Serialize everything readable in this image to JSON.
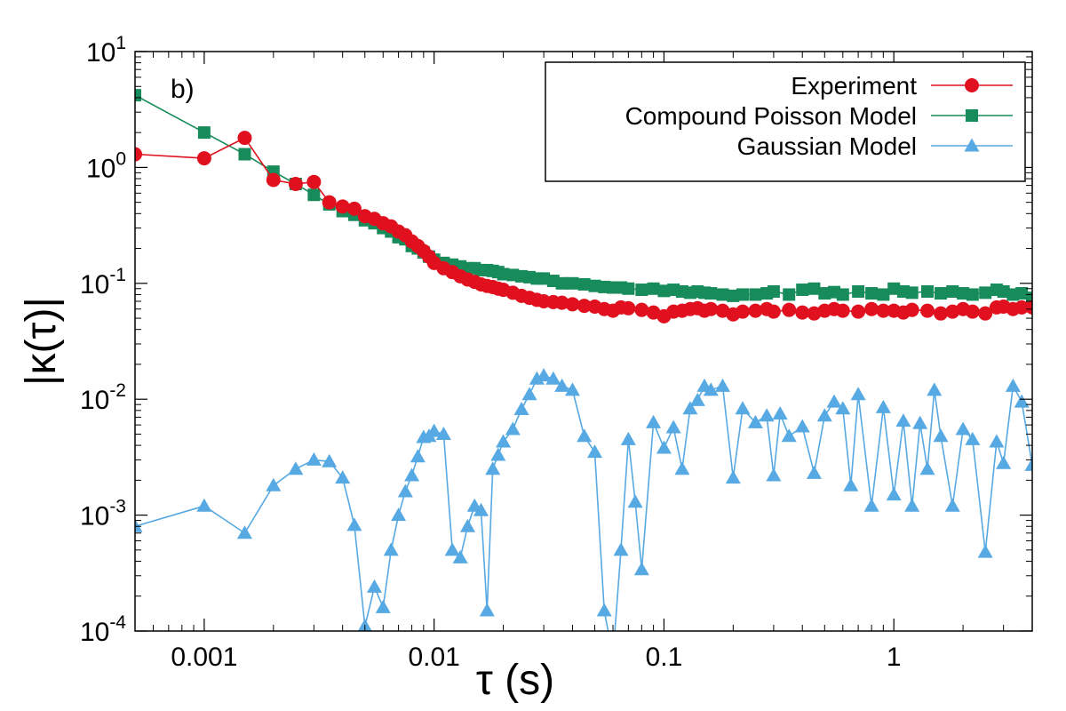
{
  "chart_data": {
    "type": "line",
    "title": "",
    "panel_label": "b)",
    "xlabel": "τ (s)",
    "ylabel": "|κ(τ)|",
    "xscale": "log",
    "yscale": "log",
    "xlim": [
      0.0005,
      4.0
    ],
    "ylim": [
      0.0001,
      10
    ],
    "x_ticks": [
      {
        "value": 0.001,
        "label": "0.001"
      },
      {
        "value": 0.01,
        "label": "0.01"
      },
      {
        "value": 0.1,
        "label": "0.1"
      },
      {
        "value": 1,
        "label": "1"
      }
    ],
    "y_ticks": [
      {
        "value": 10,
        "base": "10",
        "exp": "1"
      },
      {
        "value": 1,
        "base": "10",
        "exp": "0"
      },
      {
        "value": 0.1,
        "base": "10",
        "exp": "-1"
      },
      {
        "value": 0.01,
        "base": "10",
        "exp": "-2"
      },
      {
        "value": 0.001,
        "base": "10",
        "exp": "-3"
      },
      {
        "value": 0.0001,
        "base": "10",
        "exp": "-4"
      }
    ],
    "grid": false,
    "legend_position": "top-right",
    "series": [
      {
        "name": "Experiment",
        "color": "#e0101e",
        "marker": "circle",
        "x": [
          0.0005,
          0.001,
          0.0015,
          0.002,
          0.0025,
          0.003,
          0.0035,
          0.004,
          0.0045,
          0.005,
          0.0055,
          0.006,
          0.0065,
          0.007,
          0.0075,
          0.008,
          0.0085,
          0.009,
          0.0095,
          0.01,
          0.011,
          0.012,
          0.013,
          0.014,
          0.015,
          0.016,
          0.017,
          0.018,
          0.019,
          0.02,
          0.022,
          0.024,
          0.026,
          0.028,
          0.03,
          0.033,
          0.036,
          0.04,
          0.045,
          0.05,
          0.055,
          0.06,
          0.065,
          0.07,
          0.08,
          0.09,
          0.1,
          0.11,
          0.12,
          0.13,
          0.14,
          0.15,
          0.16,
          0.18,
          0.2,
          0.22,
          0.25,
          0.28,
          0.3,
          0.35,
          0.4,
          0.45,
          0.5,
          0.55,
          0.6,
          0.7,
          0.8,
          0.9,
          1.0,
          1.1,
          1.2,
          1.4,
          1.6,
          1.8,
          2.0,
          2.2,
          2.5,
          2.8,
          3.0,
          3.3,
          3.6,
          4.0
        ],
        "values": [
          1.3,
          1.2,
          1.8,
          0.78,
          0.72,
          0.75,
          0.5,
          0.46,
          0.44,
          0.38,
          0.36,
          0.33,
          0.31,
          0.28,
          0.26,
          0.23,
          0.21,
          0.19,
          0.17,
          0.15,
          0.135,
          0.125,
          0.115,
          0.108,
          0.103,
          0.098,
          0.095,
          0.093,
          0.09,
          0.088,
          0.083,
          0.078,
          0.075,
          0.072,
          0.07,
          0.069,
          0.068,
          0.066,
          0.064,
          0.063,
          0.06,
          0.058,
          0.062,
          0.061,
          0.059,
          0.056,
          0.052,
          0.057,
          0.058,
          0.06,
          0.061,
          0.058,
          0.06,
          0.058,
          0.054,
          0.057,
          0.058,
          0.06,
          0.057,
          0.059,
          0.056,
          0.055,
          0.058,
          0.06,
          0.058,
          0.057,
          0.06,
          0.058,
          0.058,
          0.056,
          0.059,
          0.058,
          0.055,
          0.057,
          0.06,
          0.057,
          0.055,
          0.062,
          0.063,
          0.06,
          0.062,
          0.062
        ]
      },
      {
        "name": "Compound Poisson Model",
        "color": "#178c5a",
        "marker": "square",
        "x": [
          0.0005,
          0.001,
          0.0015,
          0.002,
          0.0025,
          0.003,
          0.0035,
          0.004,
          0.0045,
          0.005,
          0.0055,
          0.006,
          0.0065,
          0.007,
          0.0075,
          0.008,
          0.0085,
          0.009,
          0.0095,
          0.01,
          0.011,
          0.012,
          0.013,
          0.014,
          0.015,
          0.016,
          0.017,
          0.018,
          0.019,
          0.02,
          0.022,
          0.024,
          0.026,
          0.028,
          0.03,
          0.033,
          0.036,
          0.04,
          0.045,
          0.05,
          0.055,
          0.06,
          0.065,
          0.07,
          0.08,
          0.09,
          0.1,
          0.11,
          0.12,
          0.13,
          0.14,
          0.15,
          0.16,
          0.18,
          0.2,
          0.22,
          0.25,
          0.28,
          0.3,
          0.35,
          0.4,
          0.45,
          0.5,
          0.55,
          0.6,
          0.7,
          0.8,
          0.9,
          1.0,
          1.1,
          1.2,
          1.4,
          1.6,
          1.8,
          2.0,
          2.2,
          2.5,
          2.8,
          3.0,
          3.3,
          3.6,
          4.0
        ],
        "values": [
          4.2,
          2.0,
          1.3,
          0.92,
          0.72,
          0.58,
          0.48,
          0.42,
          0.39,
          0.35,
          0.33,
          0.3,
          0.28,
          0.25,
          0.24,
          0.21,
          0.2,
          0.185,
          0.17,
          0.16,
          0.15,
          0.145,
          0.14,
          0.135,
          0.135,
          0.13,
          0.13,
          0.128,
          0.125,
          0.12,
          0.118,
          0.115,
          0.113,
          0.11,
          0.11,
          0.105,
          0.1,
          0.1,
          0.098,
          0.095,
          0.093,
          0.092,
          0.092,
          0.09,
          0.088,
          0.09,
          0.086,
          0.088,
          0.085,
          0.083,
          0.085,
          0.083,
          0.082,
          0.08,
          0.078,
          0.08,
          0.08,
          0.082,
          0.085,
          0.08,
          0.088,
          0.09,
          0.082,
          0.084,
          0.08,
          0.085,
          0.082,
          0.08,
          0.09,
          0.085,
          0.083,
          0.085,
          0.082,
          0.085,
          0.082,
          0.08,
          0.083,
          0.088,
          0.085,
          0.08,
          0.082,
          0.075
        ]
      },
      {
        "name": "Gaussian Model",
        "color": "#56a9e2",
        "marker": "triangle",
        "x": [
          0.0005,
          0.001,
          0.0015,
          0.002,
          0.0025,
          0.003,
          0.0035,
          0.004,
          0.0045,
          0.005,
          0.0055,
          0.006,
          0.0065,
          0.007,
          0.0075,
          0.008,
          0.0085,
          0.009,
          0.0095,
          0.01,
          0.011,
          0.012,
          0.013,
          0.014,
          0.015,
          0.016,
          0.017,
          0.018,
          0.019,
          0.02,
          0.022,
          0.024,
          0.026,
          0.028,
          0.03,
          0.033,
          0.036,
          0.04,
          0.045,
          0.05,
          0.055,
          0.06,
          0.065,
          0.07,
          0.075,
          0.08,
          0.09,
          0.1,
          0.11,
          0.12,
          0.13,
          0.14,
          0.15,
          0.16,
          0.18,
          0.2,
          0.22,
          0.25,
          0.28,
          0.3,
          0.32,
          0.35,
          0.4,
          0.45,
          0.5,
          0.55,
          0.6,
          0.65,
          0.7,
          0.8,
          0.9,
          1.0,
          1.1,
          1.2,
          1.3,
          1.4,
          1.5,
          1.6,
          1.8,
          2.0,
          2.2,
          2.5,
          2.8,
          3.0,
          3.3,
          3.6,
          4.0
        ],
        "values": [
          0.0008,
          0.0012,
          0.0007,
          0.0018,
          0.0025,
          0.003,
          0.0029,
          0.0021,
          0.00082,
          0.00011,
          0.00024,
          0.00016,
          0.0005,
          0.001,
          0.0016,
          0.0022,
          0.0032,
          0.0047,
          0.0048,
          0.0053,
          0.005,
          0.0005,
          0.00043,
          0.0008,
          0.0012,
          0.0011,
          0.00015,
          0.0025,
          0.0033,
          0.0043,
          0.0055,
          0.0082,
          0.011,
          0.015,
          0.016,
          0.015,
          0.013,
          0.012,
          0.0048,
          0.0035,
          0.00015,
          6e-05,
          0.0005,
          0.0045,
          0.0013,
          0.00034,
          0.0063,
          0.0038,
          0.0057,
          0.0025,
          0.0083,
          0.0098,
          0.013,
          0.012,
          0.013,
          0.0021,
          0.0083,
          0.0063,
          0.0072,
          0.0022,
          0.0075,
          0.0048,
          0.0058,
          0.0023,
          0.0072,
          0.0095,
          0.0083,
          0.0018,
          0.011,
          0.0012,
          0.0085,
          0.0015,
          0.0065,
          0.0012,
          0.0062,
          0.0025,
          0.012,
          0.0048,
          0.0012,
          0.0055,
          0.0045,
          0.00048,
          0.0043,
          0.0028,
          0.013,
          0.0095,
          0.0027
        ]
      }
    ]
  }
}
